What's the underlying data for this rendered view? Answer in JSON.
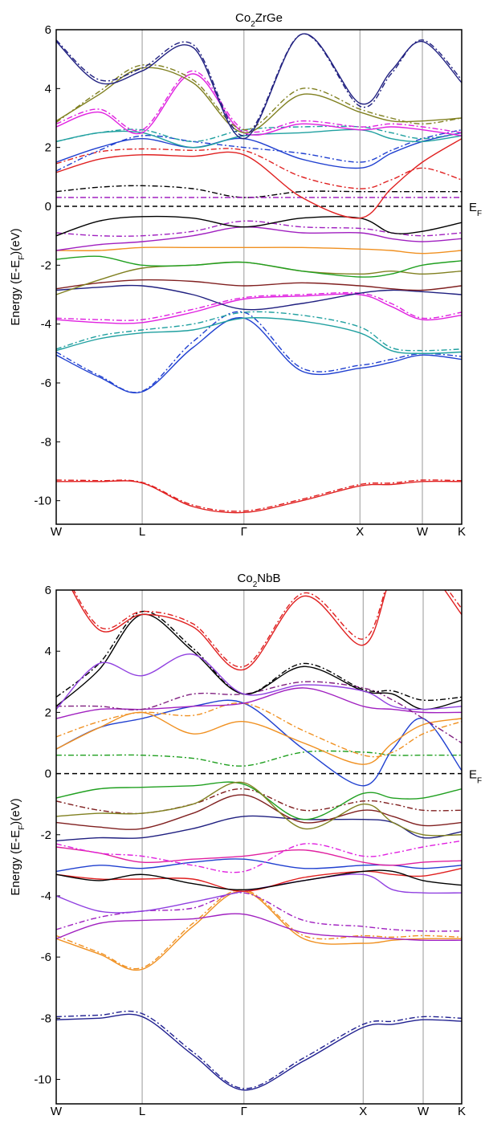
{
  "chart_data": [
    {
      "type": "line",
      "title": [
        "Co",
        "2",
        "ZrGe"
      ],
      "y_label": [
        "Energy (E-E",
        "F",
        ")(eV)"
      ],
      "annotation": [
        "E",
        "F"
      ],
      "fermi_level": 0,
      "xlim": [
        0,
        1
      ],
      "ylim": [
        -10.8,
        6
      ],
      "xticks": [
        {
          "value": 0,
          "label": "W"
        },
        {
          "value": 0.212,
          "label": "L"
        },
        {
          "value": 0.463,
          "label": "Γ"
        },
        {
          "value": 0.749,
          "label": "X"
        },
        {
          "value": 0.903,
          "label": "W"
        },
        {
          "value": 1,
          "label": "K"
        }
      ],
      "yticks": [
        6,
        4,
        2,
        0,
        -2,
        -4,
        -6,
        -8,
        -10
      ],
      "x": [
        0,
        0.106,
        0.212,
        0.337,
        0.463,
        0.606,
        0.749,
        0.826,
        0.903,
        1
      ],
      "series": [
        {
          "color": "#e02020",
          "dashed": false,
          "values": [
            -9.35,
            -9.35,
            -9.4,
            -10.2,
            -10.4,
            -10.0,
            -9.5,
            -9.45,
            -9.35,
            -9.35
          ]
        },
        {
          "color": "#e02020",
          "dashed": true,
          "values": [
            -9.3,
            -9.32,
            -9.38,
            -10.15,
            -10.35,
            -9.95,
            -9.45,
            -9.4,
            -9.3,
            -9.32
          ]
        },
        {
          "color": "#2040d0",
          "dashed": false,
          "values": [
            -5.05,
            -5.8,
            -6.3,
            -4.8,
            -3.8,
            -5.6,
            -5.5,
            -5.3,
            -5.05,
            -5.2
          ]
        },
        {
          "color": "#2040d0",
          "dashed": true,
          "values": [
            -4.95,
            -5.75,
            -6.28,
            -4.6,
            -3.6,
            -5.5,
            -5.4,
            -5.2,
            -5.0,
            -5.1
          ]
        },
        {
          "color": "#20a0a0",
          "dashed": false,
          "values": [
            -4.9,
            -4.5,
            -4.3,
            -4.2,
            -3.8,
            -3.9,
            -4.3,
            -4.9,
            -5.0,
            -4.95
          ]
        },
        {
          "color": "#20a0a0",
          "dashed": true,
          "values": [
            -4.85,
            -4.4,
            -4.2,
            -4.0,
            -3.6,
            -3.7,
            -4.1,
            -4.8,
            -4.9,
            -4.85
          ]
        },
        {
          "color": "#e020e0",
          "dashed": false,
          "values": [
            -3.85,
            -3.95,
            -3.95,
            -3.6,
            -3.15,
            -3.05,
            -3.0,
            -3.4,
            -3.85,
            -3.7
          ]
        },
        {
          "color": "#e020e0",
          "dashed": true,
          "values": [
            -3.8,
            -3.85,
            -3.85,
            -3.5,
            -3.1,
            -3.0,
            -2.95,
            -3.3,
            -3.8,
            -3.6
          ]
        },
        {
          "color": "#202080",
          "dashed": false,
          "values": [
            -2.85,
            -2.75,
            -2.7,
            -3.0,
            -3.5,
            -3.3,
            -2.95,
            -2.85,
            -2.9,
            -3.0
          ]
        },
        {
          "color": "#802020",
          "dashed": false,
          "values": [
            -2.8,
            -2.6,
            -2.5,
            -2.55,
            -2.7,
            -2.6,
            -2.7,
            -2.8,
            -2.85,
            -2.7
          ]
        },
        {
          "color": "#808020",
          "dashed": false,
          "values": [
            -3.0,
            -2.5,
            -2.1,
            -2.0,
            -1.9,
            -2.2,
            -2.3,
            -2.2,
            -2.3,
            -2.2
          ]
        },
        {
          "color": "#20a020",
          "dashed": false,
          "values": [
            -1.8,
            -1.7,
            -2.0,
            -2.0,
            -1.9,
            -2.2,
            -2.4,
            -2.3,
            -2.0,
            -1.85
          ]
        },
        {
          "color": "#f09020",
          "dashed": false,
          "values": [
            -1.5,
            -1.5,
            -1.4,
            -1.4,
            -1.4,
            -1.4,
            -1.45,
            -1.5,
            -1.6,
            -1.5
          ]
        },
        {
          "color": "#a020c0",
          "dashed": false,
          "values": [
            -1.5,
            -1.3,
            -1.2,
            -1.0,
            -0.7,
            -0.9,
            -0.9,
            -1.1,
            -1.2,
            -1.1
          ]
        },
        {
          "color": "#a020c0",
          "dashed": true,
          "values": [
            -0.9,
            -1.0,
            -1.0,
            -0.85,
            -0.5,
            -0.7,
            -0.75,
            -0.9,
            -1.0,
            -0.9
          ]
        },
        {
          "color": "#000000",
          "dashed": false,
          "values": [
            -1.0,
            -0.5,
            -0.35,
            -0.4,
            -0.7,
            -0.4,
            -0.4,
            -0.9,
            -0.85,
            -0.55
          ]
        },
        {
          "color": "#000000",
          "dashed": true,
          "values": [
            0.5,
            0.65,
            0.7,
            0.6,
            0.3,
            0.5,
            0.5,
            0.5,
            0.5,
            0.5
          ]
        },
        {
          "color": "#a020c0",
          "dashed": true,
          "values": [
            0.3,
            0.3,
            0.3,
            0.3,
            0.3,
            0.3,
            0.3,
            0.3,
            0.3,
            0.3
          ]
        },
        {
          "color": "#e02020",
          "dashed": false,
          "values": [
            1.15,
            1.6,
            1.75,
            1.7,
            1.75,
            0.3,
            -0.4,
            0.6,
            1.5,
            2.3
          ]
        },
        {
          "color": "#e02020",
          "dashed": true,
          "values": [
            1.45,
            1.85,
            1.95,
            1.9,
            1.9,
            1.0,
            0.6,
            0.9,
            1.3,
            0.9
          ]
        },
        {
          "color": "#2040d0",
          "dashed": false,
          "values": [
            1.5,
            2.0,
            2.3,
            2.0,
            2.3,
            1.6,
            1.3,
            1.8,
            2.2,
            2.5
          ]
        },
        {
          "color": "#2040d0",
          "dashed": true,
          "values": [
            1.2,
            1.9,
            2.4,
            2.2,
            2.0,
            1.8,
            1.5,
            1.9,
            2.3,
            2.6
          ]
        },
        {
          "color": "#20a0a0",
          "dashed": false,
          "values": [
            2.2,
            2.5,
            2.5,
            2.0,
            2.4,
            2.5,
            2.6,
            2.3,
            2.2,
            2.4
          ]
        },
        {
          "color": "#20a0a0",
          "dashed": true,
          "values": [
            2.2,
            2.5,
            2.6,
            2.2,
            2.6,
            2.7,
            2.7,
            2.5,
            2.3,
            2.5
          ]
        },
        {
          "color": "#e020e0",
          "dashed": false,
          "values": [
            2.7,
            3.2,
            2.5,
            4.5,
            2.5,
            2.8,
            2.6,
            2.7,
            2.6,
            2.4
          ]
        },
        {
          "color": "#e020e0",
          "dashed": true,
          "values": [
            2.8,
            3.3,
            2.6,
            4.6,
            2.6,
            2.9,
            2.7,
            2.8,
            2.7,
            2.5
          ]
        },
        {
          "color": "#808020",
          "dashed": false,
          "values": [
            2.9,
            3.8,
            4.7,
            4.2,
            2.5,
            3.8,
            3.2,
            2.9,
            2.9,
            3.0
          ]
        },
        {
          "color": "#808020",
          "dashed": true,
          "values": [
            2.85,
            3.9,
            4.8,
            4.3,
            2.6,
            4.0,
            3.3,
            3.0,
            2.8,
            3.0
          ]
        },
        {
          "color": "#202080",
          "dashed": false,
          "values": [
            5.6,
            4.2,
            4.6,
            5.4,
            2.3,
            5.85,
            3.5,
            4.6,
            5.6,
            4.2
          ]
        },
        {
          "color": "#202080",
          "dashed": true,
          "values": [
            5.65,
            4.3,
            4.7,
            5.5,
            2.4,
            5.85,
            3.4,
            4.5,
            5.65,
            4.3
          ]
        }
      ]
    },
    {
      "type": "line",
      "title": [
        "Co",
        "2",
        "NbB"
      ],
      "y_label": [
        "Energy (E-E",
        "F",
        ")(eV)"
      ],
      "annotation": [
        "E",
        "F"
      ],
      "fermi_level": 0,
      "xlim": [
        0,
        1
      ],
      "ylim": [
        -10.8,
        6
      ],
      "xticks": [
        {
          "value": 0,
          "label": "W"
        },
        {
          "value": 0.212,
          "label": "L"
        },
        {
          "value": 0.463,
          "label": "Γ"
        },
        {
          "value": 0.757,
          "label": "X"
        },
        {
          "value": 0.905,
          "label": "W"
        },
        {
          "value": 1,
          "label": "K"
        }
      ],
      "yticks": [
        6,
        4,
        2,
        0,
        -2,
        -4,
        -6,
        -8,
        -10
      ],
      "x": [
        0,
        0.106,
        0.212,
        0.337,
        0.463,
        0.61,
        0.757,
        0.83,
        0.905,
        1
      ],
      "series": [
        {
          "color": "#202090",
          "dashed": false,
          "values": [
            -8.05,
            -8.0,
            -7.95,
            -9.2,
            -10.35,
            -9.4,
            -8.3,
            -8.2,
            -8.05,
            -8.1
          ]
        },
        {
          "color": "#202090",
          "dashed": true,
          "values": [
            -7.95,
            -7.9,
            -7.85,
            -9.1,
            -10.3,
            -9.3,
            -8.2,
            -8.1,
            -7.95,
            -8.0
          ]
        },
        {
          "color": "#f09020",
          "dashed": false,
          "values": [
            -5.4,
            -5.9,
            -6.4,
            -5.0,
            -3.85,
            -5.4,
            -5.55,
            -5.45,
            -5.4,
            -5.4
          ]
        },
        {
          "color": "#f09020",
          "dashed": true,
          "values": [
            -5.3,
            -5.85,
            -6.35,
            -4.9,
            -3.8,
            -5.3,
            -5.3,
            -5.35,
            -5.3,
            -5.35
          ]
        },
        {
          "color": "#a020c0",
          "dashed": false,
          "values": [
            -5.4,
            -4.9,
            -4.8,
            -4.75,
            -4.6,
            -5.2,
            -5.35,
            -5.4,
            -5.45,
            -5.45
          ]
        },
        {
          "color": "#a020c0",
          "dashed": true,
          "values": [
            -5.1,
            -4.7,
            -4.5,
            -4.4,
            -3.9,
            -4.8,
            -5.0,
            -5.1,
            -5.15,
            -5.15
          ]
        },
        {
          "color": "#9040e0",
          "dashed": false,
          "values": [
            -4.0,
            -4.5,
            -4.5,
            -4.2,
            -3.85,
            -3.5,
            -3.3,
            -3.8,
            -3.9,
            -3.9
          ]
        },
        {
          "color": "#e02020",
          "dashed": false,
          "values": [
            -3.3,
            -3.45,
            -3.45,
            -3.45,
            -3.85,
            -3.4,
            -3.2,
            -3.3,
            -3.35,
            -3.1
          ]
        },
        {
          "color": "#000000",
          "dashed": false,
          "values": [
            -3.3,
            -3.5,
            -3.3,
            -3.6,
            -3.8,
            -3.5,
            -3.2,
            -3.2,
            -3.5,
            -3.65
          ]
        },
        {
          "color": "#2040d0",
          "dashed": false,
          "values": [
            -3.2,
            -3.0,
            -3.1,
            -2.9,
            -2.8,
            -3.1,
            -3.0,
            -3.0,
            -3.1,
            -3.0
          ]
        },
        {
          "color": "#e020a0",
          "dashed": false,
          "values": [
            -2.4,
            -2.6,
            -2.9,
            -2.8,
            -2.7,
            -2.5,
            -2.9,
            -3.0,
            -2.9,
            -2.85
          ]
        },
        {
          "color": "#e020e0",
          "dashed": true,
          "values": [
            -2.3,
            -2.6,
            -2.7,
            -3.0,
            -3.2,
            -2.3,
            -2.7,
            -2.6,
            -2.4,
            -2.2
          ]
        },
        {
          "color": "#202080",
          "dashed": false,
          "values": [
            -2.2,
            -2.1,
            -2.1,
            -1.8,
            -1.4,
            -1.5,
            -1.5,
            -1.6,
            -2.1,
            -1.9
          ]
        },
        {
          "color": "#802020",
          "dashed": false,
          "values": [
            -1.6,
            -1.75,
            -1.8,
            -1.3,
            -0.7,
            -1.6,
            -1.2,
            -1.4,
            -1.7,
            -1.6
          ]
        },
        {
          "color": "#802020",
          "dashed": true,
          "values": [
            -0.9,
            -1.2,
            -1.3,
            -1.0,
            -0.5,
            -1.2,
            -0.9,
            -1.0,
            -1.2,
            -1.2
          ]
        },
        {
          "color": "#20a020",
          "dashed": false,
          "values": [
            -0.8,
            -0.5,
            -0.45,
            -0.4,
            -0.35,
            -1.5,
            -0.65,
            -0.8,
            -0.8,
            -0.5
          ]
        },
        {
          "color": "#808020",
          "dashed": false,
          "values": [
            -1.4,
            -1.3,
            -1.3,
            -1.0,
            -0.3,
            -1.8,
            -1.0,
            -1.6,
            -2.0,
            -2.0
          ]
        },
        {
          "color": "#20a020",
          "dashed": true,
          "values": [
            0.6,
            0.6,
            0.6,
            0.5,
            0.25,
            0.7,
            0.7,
            0.6,
            0.6,
            0.6
          ]
        },
        {
          "color": "#2040d0",
          "dashed": false,
          "values": [
            0.8,
            1.5,
            1.8,
            2.2,
            2.3,
            0.8,
            -0.4,
            0.8,
            1.8,
            0.1
          ]
        },
        {
          "color": "#f09020",
          "dashed": false,
          "values": [
            0.8,
            1.5,
            2.0,
            1.3,
            1.7,
            1.0,
            0.3,
            1.0,
            1.6,
            1.8
          ]
        },
        {
          "color": "#f09020",
          "dashed": true,
          "values": [
            1.2,
            1.7,
            2.0,
            1.9,
            2.3,
            1.4,
            0.6,
            0.7,
            1.3,
            1.7
          ]
        },
        {
          "color": "#a020c0",
          "dashed": false,
          "values": [
            1.8,
            2.1,
            2.1,
            2.2,
            2.3,
            2.8,
            2.2,
            2.1,
            2.0,
            2.0
          ]
        },
        {
          "color": "#802080",
          "dashed": true,
          "values": [
            2.2,
            2.2,
            2.1,
            2.6,
            2.6,
            3.0,
            2.8,
            2.4,
            1.8,
            1.0
          ]
        },
        {
          "color": "#000000",
          "dashed": false,
          "values": [
            2.2,
            3.4,
            5.2,
            4.0,
            2.6,
            3.5,
            2.7,
            2.6,
            2.1,
            2.4
          ]
        },
        {
          "color": "#000000",
          "dashed": true,
          "values": [
            2.5,
            3.6,
            5.3,
            4.1,
            2.6,
            3.6,
            2.75,
            2.7,
            2.4,
            2.5
          ]
        },
        {
          "color": "#9040e0",
          "dashed": false,
          "values": [
            2.1,
            3.6,
            3.2,
            3.9,
            2.6,
            2.9,
            2.7,
            2.2,
            2.1,
            2.2
          ]
        },
        {
          "color": "#e02020",
          "dashed": false,
          "values": [
            7.0,
            4.7,
            5.2,
            4.8,
            3.4,
            5.8,
            4.2,
            6.5,
            6.8,
            5.2
          ]
        },
        {
          "color": "#e02020",
          "dashed": true,
          "values": [
            7.1,
            4.8,
            5.3,
            4.9,
            3.5,
            5.9,
            4.4,
            6.6,
            6.9,
            5.4
          ]
        }
      ]
    }
  ]
}
